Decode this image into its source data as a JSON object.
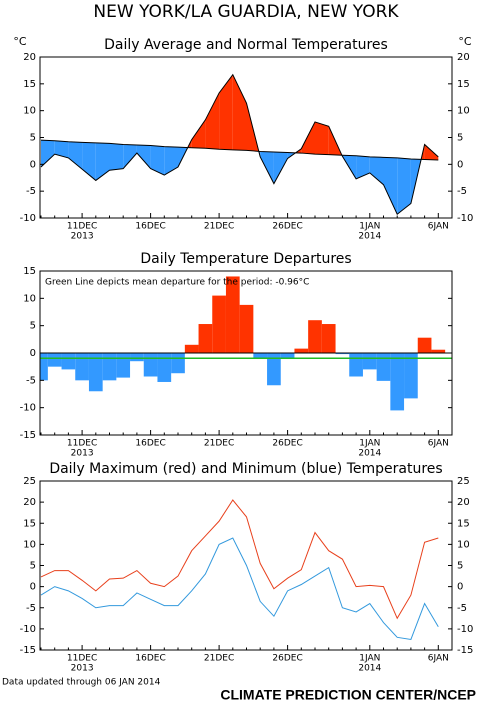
{
  "title": "NEW YORK/LA GUARDIA, NEW YORK",
  "footer": {
    "left": "Data updated through 06 JAN 2014",
    "right": "CLIMATE PREDICTION CENTER/NCEP"
  },
  "chart_data": [
    {
      "type": "diff-area",
      "title": "Daily Average and Normal Temperatures",
      "y_unit_left": "°C",
      "y_unit_right": "°C",
      "right_axis": true,
      "categories": [
        null,
        null,
        null,
        "11DEC",
        null,
        null,
        null,
        null,
        "16DEC",
        null,
        null,
        null,
        null,
        "21DEC",
        null,
        null,
        null,
        null,
        "26DEC",
        null,
        null,
        null,
        null,
        null,
        "1JAN",
        null,
        null,
        null,
        null,
        "6JAN"
      ],
      "x_years": [
        null,
        null,
        null,
        "2013",
        null,
        null,
        null,
        null,
        null,
        null,
        null,
        null,
        null,
        null,
        null,
        null,
        null,
        null,
        null,
        null,
        null,
        null,
        null,
        null,
        "2014",
        null,
        null,
        null,
        null,
        null
      ],
      "series": [
        {
          "color": "#000000",
          "values": [
            -0.5,
            1.9,
            1.2,
            -0.9,
            -3.0,
            -1.1,
            -0.8,
            2.1,
            -0.8,
            -2.0,
            -0.5,
            4.6,
            8.3,
            13.3,
            16.7,
            11.4,
            1.4,
            -3.6,
            1.1,
            2.9,
            7.9,
            7.1,
            1.5,
            -2.7,
            -1.6,
            -3.8,
            -9.3,
            -7.3,
            3.7,
            1.4
          ]
        },
        {
          "color": "#000000",
          "values": [
            4.5,
            4.4,
            4.2,
            4.1,
            4.0,
            3.9,
            3.7,
            3.6,
            3.5,
            3.3,
            3.2,
            3.1,
            3.0,
            2.8,
            2.7,
            2.6,
            2.4,
            2.3,
            2.2,
            2.1,
            1.9,
            1.8,
            1.7,
            1.6,
            1.4,
            1.3,
            1.2,
            1.0,
            0.9,
            0.8
          ]
        }
      ],
      "above_color": "#ff3300",
      "below_color": "#3399ff",
      "ylim": [
        -10,
        20
      ],
      "yticks": [
        -10,
        -5,
        0,
        5,
        10,
        15,
        20
      ]
    },
    {
      "type": "bar",
      "title": "Daily Temperature Departures",
      "annotation": "Green Line depicts mean departure for the period: -0.96°C",
      "mean_departure": -0.96,
      "mean_color": "#22bb22",
      "right_axis": false,
      "categories": [
        null,
        null,
        null,
        "11DEC",
        null,
        null,
        null,
        null,
        "16DEC",
        null,
        null,
        null,
        null,
        "21DEC",
        null,
        null,
        null,
        null,
        "26DEC",
        null,
        null,
        null,
        null,
        null,
        "1JAN",
        null,
        null,
        null,
        null,
        "6JAN"
      ],
      "x_years": [
        null,
        null,
        null,
        "2013",
        null,
        null,
        null,
        null,
        null,
        null,
        null,
        null,
        null,
        null,
        null,
        null,
        null,
        null,
        null,
        null,
        null,
        null,
        null,
        null,
        "2014",
        null,
        null,
        null,
        null,
        null
      ],
      "values": [
        -5,
        -2.5,
        -3,
        -5,
        -7,
        -5,
        -4.5,
        -1.5,
        -4.3,
        -5.3,
        -3.7,
        1.5,
        5.3,
        10.5,
        14,
        8.8,
        -1,
        -5.9,
        -1.1,
        0.8,
        6,
        5.3,
        -0.2,
        -4.3,
        -3,
        -5.1,
        -10.5,
        -8.3,
        2.8,
        0.6
      ],
      "positive_color": "#ff3300",
      "negative_color": "#3399ff",
      "ylim": [
        -15,
        15
      ],
      "yticks": [
        -15,
        -10,
        -5,
        0,
        5,
        10,
        15
      ]
    },
    {
      "type": "line",
      "title": "Daily Maximum (red) and Minimum (blue) Temperatures",
      "right_axis": true,
      "categories": [
        null,
        null,
        null,
        "11DEC",
        null,
        null,
        null,
        null,
        "16DEC",
        null,
        null,
        null,
        null,
        "21DEC",
        null,
        null,
        null,
        null,
        "26DEC",
        null,
        null,
        null,
        null,
        null,
        "1JAN",
        null,
        null,
        null,
        null,
        "6JAN"
      ],
      "x_years": [
        null,
        null,
        null,
        "2013",
        null,
        null,
        null,
        null,
        null,
        null,
        null,
        null,
        null,
        null,
        null,
        null,
        null,
        null,
        null,
        null,
        null,
        null,
        null,
        null,
        "2014",
        null,
        null,
        null,
        null,
        null
      ],
      "series": [
        {
          "color": "#e8401c",
          "values": [
            2.3,
            3.8,
            3.8,
            1.5,
            -1,
            1.8,
            2,
            3.8,
            0.8,
            0,
            2.5,
            8.5,
            12,
            15.5,
            20.5,
            16.5,
            5.5,
            -0.5,
            2,
            4,
            12.8,
            8.5,
            6.5,
            0,
            0.3,
            0,
            -7.5,
            -2,
            10.5,
            11.5
          ]
        },
        {
          "color": "#3399dd",
          "values": [
            -2,
            0,
            -1,
            -2.8,
            -5,
            -4.5,
            -4.5,
            -1.5,
            -3,
            -4.5,
            -4.5,
            -1,
            3,
            10,
            11.5,
            5,
            -3.5,
            -7,
            -1,
            0.5,
            2.5,
            4.5,
            -5,
            -6,
            -4,
            -8.5,
            -12,
            -12.5,
            -4,
            -9.5
          ]
        }
      ],
      "ylim": [
        -15,
        25
      ],
      "yticks": [
        -15,
        -10,
        -5,
        0,
        5,
        10,
        15,
        20,
        25
      ]
    }
  ]
}
